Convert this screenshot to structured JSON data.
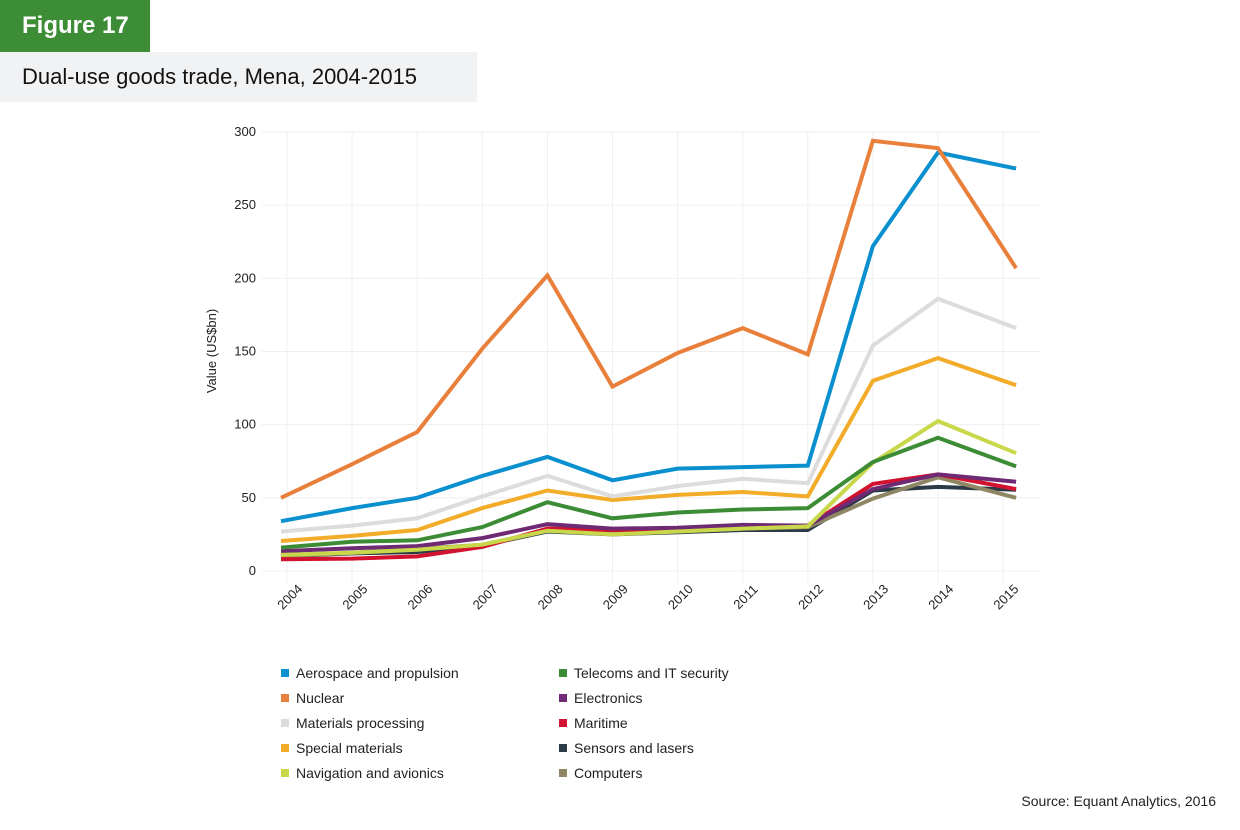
{
  "figure": {
    "badge": "Figure 17",
    "title": "Dual-use goods trade, Mena, 2004-2015",
    "source": "Source: Equant Analytics, 2016"
  },
  "chart_data": {
    "type": "line",
    "title": "Dual-use goods trade, Mena, 2004-2015",
    "xlabel": "",
    "ylabel": "Value (US$bn)",
    "ylim": [
      0,
      300
    ],
    "yticks": [
      0,
      50,
      100,
      150,
      200,
      250,
      300
    ],
    "grid": true,
    "legend_position": "bottom",
    "x": [
      "2004",
      "2005",
      "2006",
      "2007",
      "2008",
      "2009",
      "2010",
      "2011",
      "2012",
      "2013",
      "2014",
      "2015"
    ],
    "series": [
      {
        "name": "Aerospace and propulsion",
        "color": "#0a8fcf",
        "values": [
          34,
          43,
          50,
          65,
          78,
          62,
          70,
          71,
          72,
          222,
          286,
          275
        ]
      },
      {
        "name": "Nuclear",
        "color": "#e8803b",
        "values": [
          50,
          73,
          95,
          152,
          202,
          126,
          149,
          166,
          148,
          294,
          289,
          207
        ]
      },
      {
        "name": "Materials processing",
        "color": "#dcdcdc",
        "values": [
          27,
          31,
          36,
          51,
          65,
          51,
          58,
          63,
          60,
          154,
          186,
          166
        ]
      },
      {
        "name": "Special materials",
        "color": "#f2ac2a",
        "values": [
          20.5,
          24,
          28,
          43,
          55,
          48.5,
          52,
          54,
          51,
          130,
          145.5,
          127
        ]
      },
      {
        "name": "Navigation and avionics",
        "color": "#c9d74a",
        "values": [
          11,
          12.5,
          14.5,
          18,
          27.5,
          25,
          27,
          29,
          30.5,
          74,
          102.5,
          80.5
        ]
      },
      {
        "name": "Telecoms and IT security",
        "color": "#3b8c34",
        "values": [
          16,
          20,
          21,
          30,
          47,
          36,
          40,
          42,
          43,
          74.5,
          91,
          71.5
        ]
      },
      {
        "name": "Electronics",
        "color": "#6e2a73",
        "values": [
          13.5,
          15.5,
          17,
          22.5,
          32,
          29,
          29.5,
          31.5,
          31,
          56,
          66,
          61
        ]
      },
      {
        "name": "Maritime",
        "color": "#d2122e",
        "values": [
          8,
          8.5,
          10,
          16.5,
          29,
          28,
          28.5,
          30,
          31,
          59.5,
          66,
          56
        ]
      },
      {
        "name": "Sensors and lasers",
        "color": "#2c3a47",
        "values": [
          10,
          12,
          13,
          17.5,
          27,
          25,
          26.5,
          28,
          28,
          55,
          57.5,
          55.5
        ]
      },
      {
        "name": "Computers",
        "color": "#8f8763",
        "values": [
          10,
          12.5,
          15,
          18,
          27.5,
          26.5,
          27,
          29,
          30,
          49.5,
          64,
          50
        ]
      }
    ]
  },
  "legend": {
    "items": [
      {
        "label": "Aerospace and propulsion",
        "color": "#0a8fcf"
      },
      {
        "label": "Nuclear",
        "color": "#e8803b"
      },
      {
        "label": "Materials processing",
        "color": "#dcdcdc"
      },
      {
        "label": "Special materials",
        "color": "#f2ac2a"
      },
      {
        "label": "Navigation and avionics",
        "color": "#c9d74a"
      },
      {
        "label": "Telecoms and IT security",
        "color": "#3b8c34"
      },
      {
        "label": "Electronics",
        "color": "#6e2a73"
      },
      {
        "label": "Maritime",
        "color": "#d2122e"
      },
      {
        "label": "Sensors and lasers",
        "color": "#2c3a47"
      },
      {
        "label": "Computers",
        "color": "#8f8763"
      }
    ]
  }
}
